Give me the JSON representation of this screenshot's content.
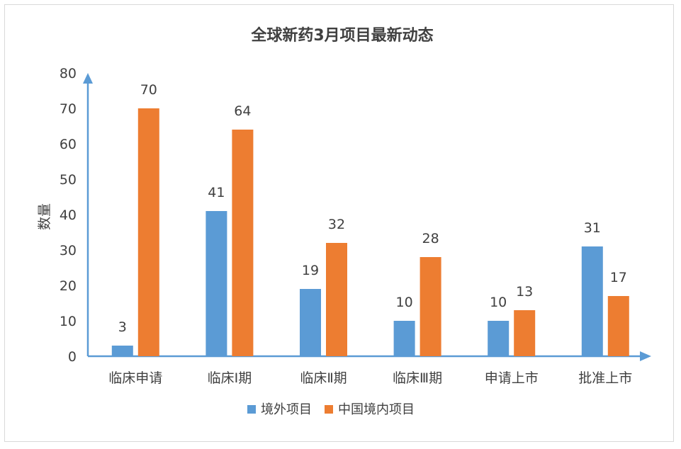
{
  "chart_data": {
    "type": "bar",
    "title": "全球新药3月项目最新动态",
    "ylabel": "数量",
    "xlabel": "",
    "ylim": [
      0,
      80
    ],
    "yticks": [
      0,
      10,
      20,
      30,
      40,
      50,
      60,
      70,
      80
    ],
    "categories": [
      "临床申请",
      "临床Ⅰ期",
      "临床Ⅱ期",
      "临床Ⅲ期",
      "申请上市",
      "批准上市"
    ],
    "series": [
      {
        "name": "境外项目",
        "color": "#5B9BD5",
        "values": [
          3,
          41,
          19,
          10,
          10,
          31
        ]
      },
      {
        "name": "中国境内项目",
        "color": "#ED7D31",
        "values": [
          70,
          64,
          32,
          28,
          13,
          17
        ]
      }
    ],
    "grid": false,
    "legend": "bottom",
    "axis_color": "#5B9BD5"
  }
}
